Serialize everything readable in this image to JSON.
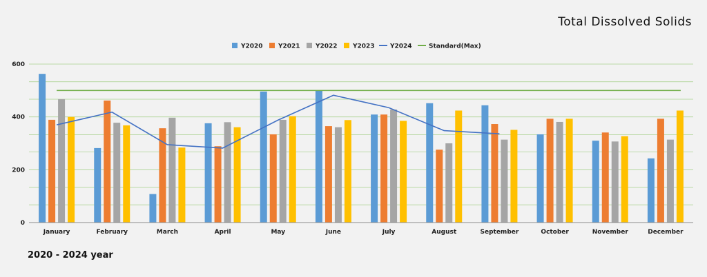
{
  "chart_data": {
    "type": "bar",
    "title": "Total Dissolved Solids",
    "footnote": "2020 - 2024 year",
    "xlabel": "",
    "ylabel": "",
    "ylim": [
      0,
      600
    ],
    "yticks": [
      0,
      200,
      400,
      600
    ],
    "gridlines": [
      0,
      67,
      133,
      200,
      267,
      333,
      400,
      467,
      533,
      600
    ],
    "legend_position": "top",
    "categories": [
      "January",
      "February",
      "March",
      "April",
      "May",
      "June",
      "July",
      "August",
      "September",
      "October",
      "November",
      "December"
    ],
    "series": [
      {
        "name": "Y2020",
        "type": "bar",
        "color": "#5b9bd5",
        "values": [
          563,
          282,
          108,
          376,
          496,
          501,
          409,
          452,
          444,
          334,
          310,
          243
        ]
      },
      {
        "name": "Y2021",
        "type": "bar",
        "color": "#ed7d31",
        "values": [
          389,
          462,
          357,
          289,
          334,
          365,
          409,
          276,
          373,
          393,
          341,
          393
        ]
      },
      {
        "name": "Y2022",
        "type": "bar",
        "color": "#a5a5a5",
        "values": [
          467,
          378,
          397,
          380,
          389,
          361,
          428,
          300,
          314,
          381,
          307,
          314
        ]
      },
      {
        "name": "Y2023",
        "type": "bar",
        "color": "#ffc000",
        "values": [
          400,
          368,
          284,
          361,
          403,
          388,
          385,
          424,
          351,
          393,
          327,
          424
        ]
      },
      {
        "name": "Y2024",
        "type": "line",
        "color": "#4472c4",
        "values": [
          370,
          418,
          295,
          282,
          388,
          482,
          435,
          348,
          336,
          null,
          null,
          null
        ]
      },
      {
        "name": "Standard(Max)",
        "type": "line",
        "color": "#70ad47",
        "values": [
          500,
          500,
          500,
          500,
          500,
          500,
          500,
          500,
          500,
          500,
          500,
          500
        ]
      }
    ]
  }
}
